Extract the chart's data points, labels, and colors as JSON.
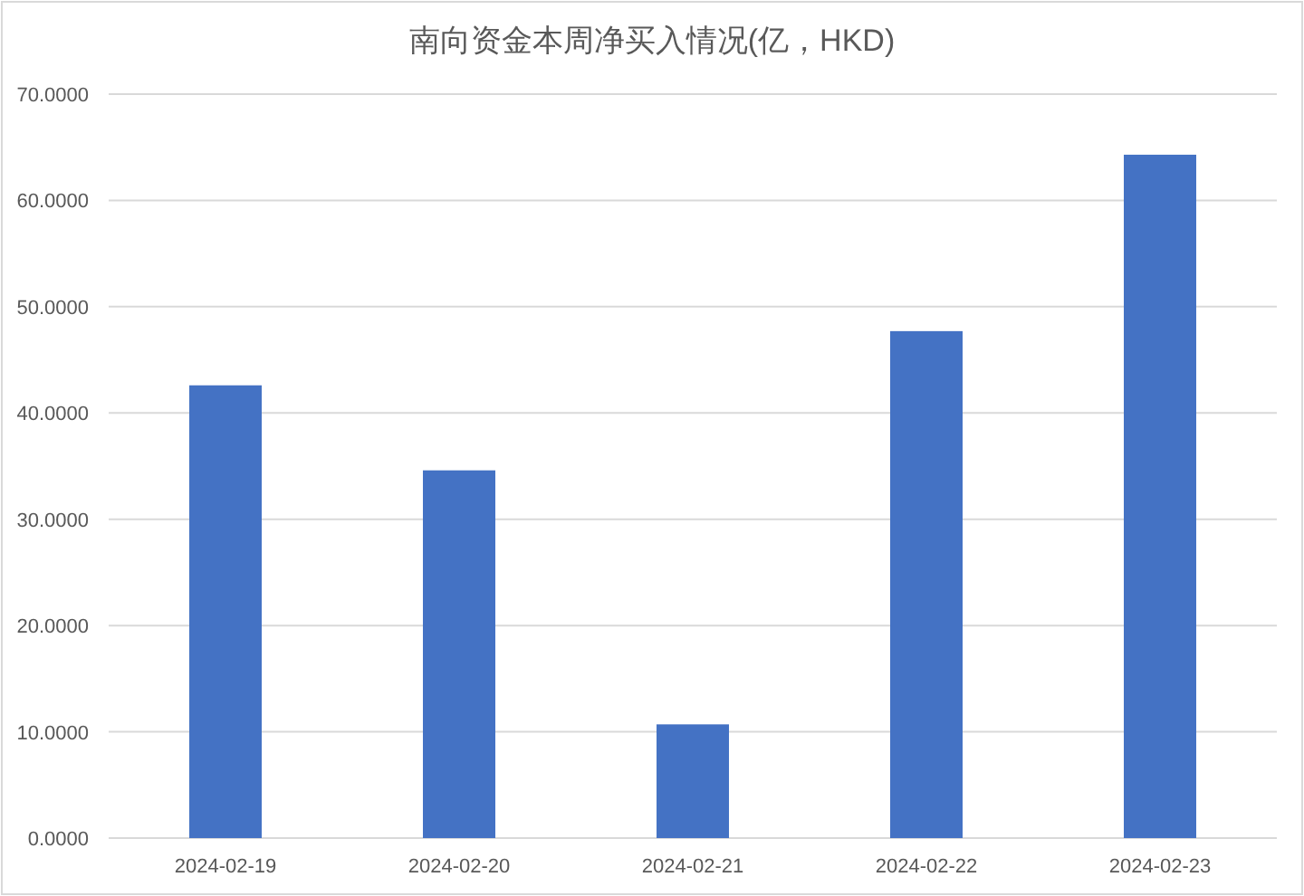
{
  "chart_data": {
    "type": "bar",
    "title": "南向资金本周净买入情况(亿，HKD)",
    "categories": [
      "2024-02-19",
      "2024-02-20",
      "2024-02-21",
      "2024-02-22",
      "2024-02-23"
    ],
    "values": [
      42.6,
      34.6,
      10.7,
      47.7,
      64.3
    ],
    "color": "#4472c4",
    "ylim": [
      0,
      70
    ],
    "yticks": [
      {
        "value": 0,
        "label": "0.0000"
      },
      {
        "value": 10,
        "label": "10.0000"
      },
      {
        "value": 20,
        "label": "20.0000"
      },
      {
        "value": 30,
        "label": "30.0000"
      },
      {
        "value": 40,
        "label": "40.0000"
      },
      {
        "value": 50,
        "label": "50.0000"
      },
      {
        "value": 60,
        "label": "60.0000"
      },
      {
        "value": 70,
        "label": "70.0000"
      }
    ],
    "grid": "y"
  }
}
